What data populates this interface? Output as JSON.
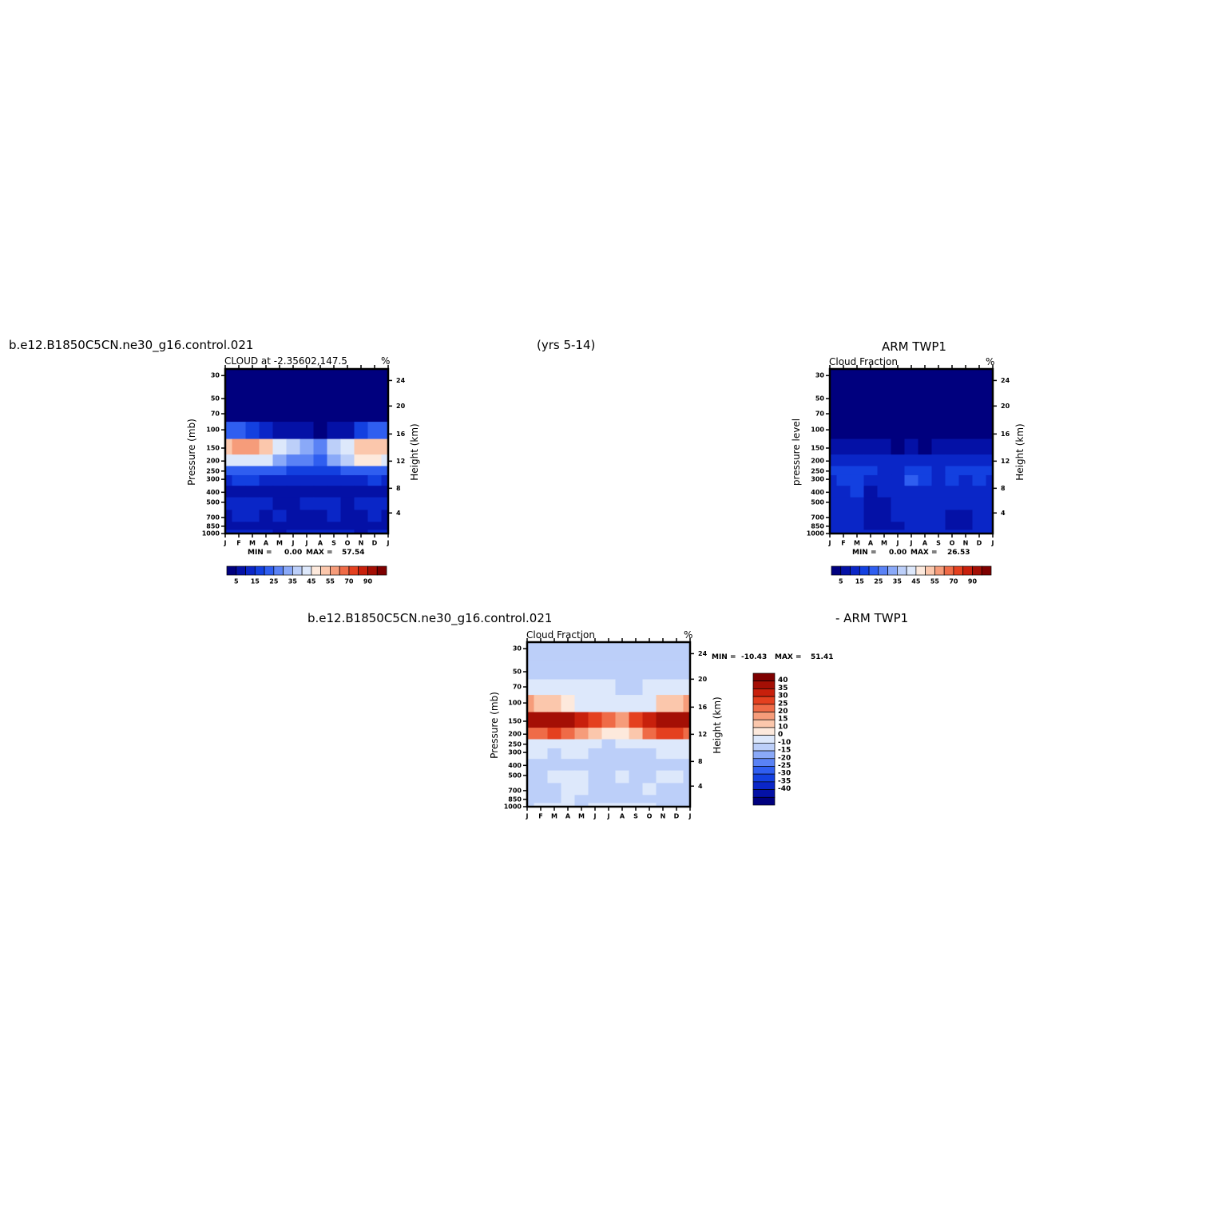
{
  "header": {
    "case_name": "b.e12.B1850C5CN.ne30_g16.control.021",
    "years": "(yrs 5-14)",
    "obs_name": "ARM TWP1",
    "diff_case_name": "b.e12.B1850C5CN.ne30_g16.control.021",
    "diff_obs_name": "- ARM TWP1"
  },
  "colors": {
    "scale": [
      "#00007e",
      "#0411a6",
      "#0a26c7",
      "#1340e0",
      "#2f5ef0",
      "#5a82f5",
      "#8aa9f8",
      "#bccff9",
      "#dde8fb",
      "#fde9dc",
      "#fbc7ac",
      "#f69c7a",
      "#ef6b47",
      "#e4401f",
      "#c8200c",
      "#a40f05",
      "#7e0000"
    ]
  },
  "chart_data": [
    {
      "type": "heatmap",
      "id": "model",
      "subtitle_left": "CLOUD at -2.35602,147.5",
      "subtitle_right": "%",
      "ylabel": "Pressure (mb)",
      "ylabel_right": "Height (km)",
      "x_ticks": [
        "J",
        "F",
        "M",
        "A",
        "M",
        "J",
        "J",
        "A",
        "S",
        "O",
        "N",
        "D",
        "J"
      ],
      "y_ticks": [
        "30",
        "50",
        "70",
        "100",
        "150",
        "200",
        "250",
        "300",
        "400",
        "500",
        "700",
        "850",
        "1000"
      ],
      "y_ticks_right": [
        "24",
        "20",
        "16",
        "12",
        "8",
        "4"
      ],
      "min_label": "MIN =",
      "min_value": "0.00",
      "max_label": "MAX =",
      "max_value": "57.54",
      "colorbar_labels": [
        "5",
        "15",
        "25",
        "35",
        "45",
        "55",
        "70",
        "90"
      ],
      "levels": [
        0,
        5,
        10,
        15,
        20,
        25,
        30,
        35,
        40,
        45,
        50,
        55,
        60,
        70,
        80,
        90,
        100
      ],
      "grid": [
        [
          0,
          0,
          0,
          0,
          0,
          0,
          0,
          0,
          0,
          0,
          0,
          0,
          0
        ],
        [
          0,
          0,
          0,
          0,
          0,
          0,
          0,
          0,
          0,
          0,
          0,
          0,
          0
        ],
        [
          2,
          2,
          2,
          1,
          1,
          1,
          0,
          0,
          1,
          1,
          2,
          2,
          2
        ],
        [
          22,
          20,
          18,
          12,
          9,
          7,
          5,
          4,
          6,
          9,
          16,
          20,
          22
        ],
        [
          52,
          55,
          57,
          52,
          42,
          38,
          32,
          28,
          36,
          44,
          50,
          54,
          52
        ],
        [
          40,
          42,
          44,
          40,
          32,
          28,
          26,
          24,
          30,
          38,
          46,
          48,
          42
        ],
        [
          22,
          24,
          24,
          22,
          20,
          18,
          17,
          16,
          18,
          20,
          22,
          24,
          22
        ],
        [
          14,
          15,
          15,
          14,
          13,
          12,
          12,
          11,
          12,
          13,
          14,
          15,
          14
        ],
        [
          8,
          9,
          9,
          8,
          6,
          8,
          8,
          7,
          6,
          8,
          6,
          9,
          8
        ],
        [
          10,
          11,
          12,
          11,
          9,
          8,
          10,
          11,
          10,
          9,
          11,
          12,
          10
        ],
        [
          9,
          10,
          10,
          9,
          10,
          9,
          8,
          9,
          10,
          9,
          8,
          10,
          9
        ],
        [
          6,
          7,
          8,
          8,
          6,
          7,
          7,
          8,
          8,
          7,
          6,
          7,
          6
        ],
        [
          10,
          11,
          11,
          10,
          9,
          10,
          11,
          11,
          10,
          10,
          9,
          10,
          10
        ]
      ]
    },
    {
      "type": "heatmap",
      "id": "obs",
      "subtitle_left": "Cloud Fraction",
      "subtitle_right": "%",
      "ylabel": "pressure level",
      "ylabel_right": "Height (km)",
      "x_ticks": [
        "J",
        "F",
        "M",
        "A",
        "M",
        "J",
        "J",
        "A",
        "S",
        "O",
        "N",
        "D",
        "J"
      ],
      "y_ticks": [
        "30",
        "50",
        "70",
        "100",
        "150",
        "200",
        "250",
        "300",
        "400",
        "500",
        "700",
        "850",
        "1000"
      ],
      "y_ticks_right": [
        "24",
        "20",
        "16",
        "12",
        "8",
        "4"
      ],
      "min_label": "MIN =",
      "min_value": "0.00",
      "max_label": "MAX =",
      "max_value": "26.53",
      "colorbar_labels": [
        "5",
        "15",
        "25",
        "35",
        "45",
        "55",
        "70",
        "90"
      ],
      "levels": [
        0,
        5,
        10,
        15,
        20,
        25,
        30,
        35,
        40,
        45,
        50,
        55,
        60,
        70,
        80,
        90,
        100
      ],
      "grid": [
        [
          0,
          0,
          0,
          0,
          0,
          0,
          0,
          0,
          0,
          0,
          0,
          0,
          0
        ],
        [
          0,
          0,
          0,
          0,
          0,
          0,
          0,
          0,
          0,
          0,
          0,
          0,
          0
        ],
        [
          0,
          0,
          0,
          0,
          0,
          0,
          0,
          0,
          0,
          0,
          0,
          0,
          0
        ],
        [
          1,
          1,
          1,
          1,
          1,
          0,
          0,
          0,
          0,
          1,
          1,
          1,
          1
        ],
        [
          8,
          7,
          6,
          6,
          5,
          4,
          5,
          4,
          5,
          6,
          7,
          8,
          8
        ],
        [
          14,
          14,
          13,
          12,
          11,
          11,
          12,
          11,
          12,
          13,
          14,
          14,
          13
        ],
        [
          15,
          16,
          16,
          15,
          13,
          14,
          18,
          16,
          14,
          15,
          16,
          16,
          15
        ],
        [
          14,
          15,
          16,
          14,
          12,
          13,
          20,
          15,
          13,
          16,
          14,
          15,
          14
        ],
        [
          13,
          14,
          15,
          9,
          11,
          12,
          14,
          13,
          12,
          13,
          11,
          14,
          13
        ],
        [
          12,
          13,
          12,
          8,
          9,
          10,
          12,
          11,
          12,
          10,
          11,
          12,
          12
        ],
        [
          11,
          12,
          12,
          8,
          8,
          10,
          11,
          12,
          11,
          9,
          9,
          11,
          11
        ],
        [
          10,
          11,
          10,
          7,
          7,
          9,
          10,
          11,
          10,
          8,
          8,
          10,
          10
        ],
        [
          11,
          11,
          11,
          10,
          10,
          10,
          11,
          11,
          10,
          10,
          10,
          11,
          11
        ]
      ]
    },
    {
      "type": "heatmap",
      "id": "diff",
      "subtitle_left": "Cloud Fraction",
      "subtitle_right": "%",
      "ylabel": "Pressure (mb)",
      "ylabel_right": "Height (km)",
      "x_ticks": [
        "J",
        "F",
        "M",
        "A",
        "M",
        "J",
        "J",
        "A",
        "S",
        "O",
        "N",
        "D",
        "J"
      ],
      "y_ticks": [
        "30",
        "50",
        "70",
        "100",
        "150",
        "200",
        "250",
        "300",
        "400",
        "500",
        "700",
        "850",
        "1000"
      ],
      "y_ticks_right": [
        "24",
        "20",
        "16",
        "12",
        "8",
        "4"
      ],
      "min_label": "MIN =",
      "min_value": "-10.43",
      "max_label": "MAX =",
      "max_value": "51.41",
      "colorbar_labels": [
        "40",
        "35",
        "30",
        "25",
        "20",
        "15",
        "10",
        "0",
        "-10",
        "-15",
        "-20",
        "-25",
        "-30",
        "-35",
        "-40"
      ],
      "levels": [
        -50,
        -40,
        -35,
        -30,
        -25,
        -20,
        -15,
        -10,
        0,
        10,
        15,
        20,
        25,
        30,
        35,
        40,
        50
      ],
      "grid": [
        [
          -2,
          -2,
          -2,
          -2,
          -2,
          -2,
          -2,
          -2,
          -2,
          -2,
          -2,
          -2,
          -2
        ],
        [
          -2,
          -2,
          -2,
          -2,
          -2,
          -2,
          -2,
          -2,
          -2,
          -2,
          -2,
          -2,
          -2
        ],
        [
          2,
          2,
          2,
          2,
          2,
          2,
          2,
          -1,
          -1,
          2,
          2,
          2,
          2
        ],
        [
          21,
          19,
          17,
          11,
          8,
          7,
          5,
          4,
          6,
          8,
          15,
          19,
          21
        ],
        [
          44,
          48,
          51,
          46,
          37,
          34,
          27,
          24,
          31,
          38,
          43,
          46,
          44
        ],
        [
          26,
          28,
          31,
          28,
          21,
          17,
          14,
          13,
          18,
          25,
          32,
          34,
          29
        ],
        [
          7,
          8,
          8,
          7,
          7,
          4,
          -1,
          0,
          4,
          5,
          6,
          8,
          7
        ],
        [
          0,
          0,
          -1,
          0,
          1,
          -1,
          -8,
          -4,
          -1,
          -3,
          0,
          0,
          0
        ],
        [
          -5,
          -5,
          -6,
          -1,
          -5,
          -4,
          -6,
          -6,
          -6,
          -5,
          -5,
          -5,
          -5
        ],
        [
          -2,
          -2,
          0,
          3,
          0,
          -2,
          -2,
          0,
          -2,
          -1,
          0,
          0,
          -2
        ],
        [
          -2,
          -2,
          -2,
          1,
          2,
          -1,
          -3,
          -3,
          -1,
          0,
          -1,
          -1,
          -2
        ],
        [
          -4,
          -4,
          -2,
          1,
          -1,
          -2,
          -3,
          -3,
          -2,
          -1,
          -2,
          -3,
          -4
        ],
        [
          -1,
          0,
          0,
          0,
          -1,
          0,
          0,
          0,
          0,
          0,
          -1,
          -1,
          -1
        ]
      ]
    }
  ]
}
